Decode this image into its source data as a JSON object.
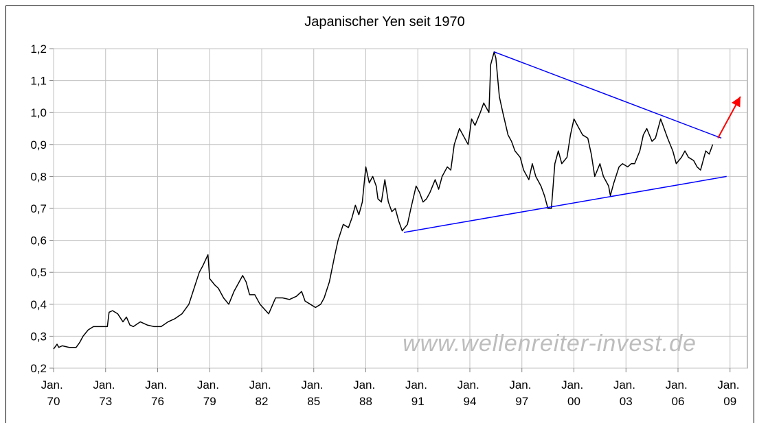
{
  "chart_data": {
    "type": "line",
    "title": "Japanischer Yen seit 1970",
    "watermark": "www.wellenreiter-invest.de",
    "xlim": [
      1970,
      2010
    ],
    "xticks": [
      {
        "value": 1970,
        "label": "Jan. 70"
      },
      {
        "value": 1973,
        "label": "Jan. 73"
      },
      {
        "value": 1976,
        "label": "Jan. 76"
      },
      {
        "value": 1979,
        "label": "Jan. 79"
      },
      {
        "value": 1982,
        "label": "Jan. 82"
      },
      {
        "value": 1985,
        "label": "Jan. 85"
      },
      {
        "value": 1988,
        "label": "Jan. 88"
      },
      {
        "value": 1991,
        "label": "Jan. 91"
      },
      {
        "value": 1994,
        "label": "Jan. 94"
      },
      {
        "value": 1997,
        "label": "Jan. 97"
      },
      {
        "value": 2000,
        "label": "Jan. 00"
      },
      {
        "value": 2003,
        "label": "Jan. 03"
      },
      {
        "value": 2006,
        "label": "Jan. 06"
      },
      {
        "value": 2009,
        "label": "Jan. 09"
      }
    ],
    "ylim": [
      0.2,
      1.2
    ],
    "yticks": [
      {
        "value": 0.2,
        "label": "0,2"
      },
      {
        "value": 0.3,
        "label": "0,3"
      },
      {
        "value": 0.4,
        "label": "0,4"
      },
      {
        "value": 0.5,
        "label": "0,5"
      },
      {
        "value": 0.6,
        "label": "0,6"
      },
      {
        "value": 0.7,
        "label": "0,7"
      },
      {
        "value": 0.8,
        "label": "0,8"
      },
      {
        "value": 0.9,
        "label": "0,9"
      },
      {
        "value": 1.0,
        "label": "1,0"
      },
      {
        "value": 1.1,
        "label": "1,1"
      },
      {
        "value": 1.2,
        "label": "1,2"
      }
    ],
    "grid": true,
    "series": [
      {
        "color": "#000000",
        "x": [
          1970.0,
          1970.2,
          1970.3,
          1970.5,
          1970.9,
          1971.3,
          1971.5,
          1971.7,
          1972.0,
          1972.3,
          1973.1,
          1973.2,
          1973.4,
          1973.7,
          1974.0,
          1974.2,
          1974.4,
          1974.6,
          1975.0,
          1975.4,
          1975.8,
          1976.2,
          1976.6,
          1977.0,
          1977.4,
          1977.8,
          1978.1,
          1978.4,
          1978.6,
          1978.9,
          1979.0,
          1979.3,
          1979.5,
          1979.8,
          1980.1,
          1980.4,
          1980.6,
          1980.9,
          1981.1,
          1981.3,
          1981.6,
          1981.9,
          1982.4,
          1982.8,
          1983.2,
          1983.6,
          1984.0,
          1984.3,
          1984.5,
          1984.8,
          1985.1,
          1985.4,
          1985.6,
          1985.9,
          1986.2,
          1986.4,
          1986.7,
          1987.0,
          1987.2,
          1987.4,
          1987.6,
          1987.8,
          1988.0,
          1988.2,
          1988.4,
          1988.6,
          1988.7,
          1988.9,
          1989.1,
          1989.3,
          1989.5,
          1989.7,
          1989.9,
          1990.1,
          1990.4,
          1990.6,
          1990.9,
          1991.1,
          1991.3,
          1991.5,
          1991.7,
          1992.0,
          1992.2,
          1992.4,
          1992.7,
          1992.9,
          1993.1,
          1993.4,
          1993.6,
          1993.9,
          1994.1,
          1994.3,
          1994.6,
          1994.8,
          1995.1,
          1995.2,
          1995.4,
          1995.5,
          1995.7,
          1995.9,
          1996.2,
          1996.4,
          1996.6,
          1996.9,
          1997.1,
          1997.4,
          1997.6,
          1997.8,
          1998.1,
          1998.3,
          1998.5,
          1998.7,
          1998.9,
          1999.1,
          1999.3,
          1999.6,
          1999.8,
          2000.0,
          2000.3,
          2000.5,
          2000.8,
          2001.0,
          2001.2,
          2001.5,
          2001.7,
          2002.0,
          2002.1,
          2002.3,
          2002.6,
          2002.8,
          2003.1,
          2003.3,
          2003.5,
          2003.8,
          2004.0,
          2004.2,
          2004.5,
          2004.7,
          2005.0,
          2005.2,
          2005.4,
          2005.7,
          2005.9,
          2006.2,
          2006.4,
          2006.6,
          2006.9,
          2007.1,
          2007.3,
          2007.6,
          2007.8,
          2008.0
        ],
        "values": [
          0.26,
          0.275,
          0.265,
          0.27,
          0.265,
          0.265,
          0.28,
          0.3,
          0.32,
          0.33,
          0.33,
          0.375,
          0.38,
          0.37,
          0.345,
          0.36,
          0.335,
          0.33,
          0.345,
          0.335,
          0.33,
          0.33,
          0.345,
          0.355,
          0.37,
          0.4,
          0.45,
          0.5,
          0.52,
          0.555,
          0.48,
          0.46,
          0.45,
          0.42,
          0.4,
          0.44,
          0.46,
          0.49,
          0.47,
          0.43,
          0.43,
          0.4,
          0.37,
          0.42,
          0.42,
          0.415,
          0.425,
          0.44,
          0.41,
          0.4,
          0.39,
          0.4,
          0.42,
          0.47,
          0.55,
          0.6,
          0.65,
          0.64,
          0.67,
          0.71,
          0.68,
          0.72,
          0.83,
          0.78,
          0.8,
          0.77,
          0.73,
          0.72,
          0.79,
          0.72,
          0.69,
          0.7,
          0.66,
          0.63,
          0.65,
          0.7,
          0.77,
          0.75,
          0.72,
          0.73,
          0.75,
          0.79,
          0.76,
          0.8,
          0.83,
          0.82,
          0.9,
          0.95,
          0.93,
          0.9,
          0.98,
          0.96,
          1.0,
          1.03,
          1.0,
          1.15,
          1.19,
          1.17,
          1.05,
          1.0,
          0.93,
          0.91,
          0.88,
          0.86,
          0.82,
          0.79,
          0.84,
          0.8,
          0.77,
          0.74,
          0.7,
          0.7,
          0.84,
          0.88,
          0.84,
          0.86,
          0.93,
          0.98,
          0.95,
          0.93,
          0.92,
          0.87,
          0.8,
          0.84,
          0.8,
          0.77,
          0.74,
          0.78,
          0.83,
          0.84,
          0.83,
          0.84,
          0.84,
          0.88,
          0.93,
          0.95,
          0.91,
          0.92,
          0.98,
          0.95,
          0.92,
          0.88,
          0.84,
          0.86,
          0.88,
          0.86,
          0.85,
          0.83,
          0.82,
          0.88,
          0.87,
          0.9
        ]
      }
    ],
    "trendlines": [
      {
        "color": "#0000ff",
        "x": [
          1995.4,
          2008.5
        ],
        "values": [
          1.19,
          0.92
        ]
      },
      {
        "color": "#0000ff",
        "x": [
          1990.2,
          2008.8
        ],
        "values": [
          0.625,
          0.8
        ]
      }
    ],
    "arrow": {
      "color": "#ff0000",
      "x": [
        2008.3,
        2009.6
      ],
      "values": [
        0.92,
        1.05
      ]
    }
  }
}
